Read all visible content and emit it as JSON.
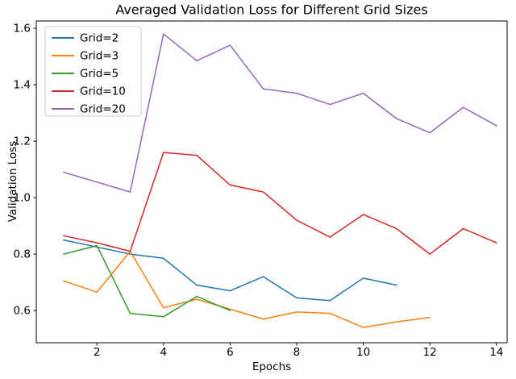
{
  "chart_data": {
    "type": "line",
    "title": "Averaged Validation Loss for Different Grid Sizes",
    "xlabel": "Epochs",
    "ylabel": "Validation Loss",
    "xlim": [
      0.18,
      14.32
    ],
    "ylim": [
      0.486,
      1.626
    ],
    "grid": false,
    "legend_position": "upper left",
    "x_ticks": [
      2,
      4,
      6,
      8,
      10,
      12,
      14
    ],
    "x_tick_labels": [
      "2",
      "4",
      "6",
      "8",
      "10",
      "12",
      "14"
    ],
    "y_ticks": [
      0.6,
      0.8,
      1.0,
      1.2,
      1.4,
      1.6
    ],
    "y_tick_labels": [
      "0.6",
      "0.8",
      "1.0",
      "1.2",
      "1.4",
      "1.6"
    ],
    "series": [
      {
        "name": "Grid=2",
        "color": "#1f77b4",
        "x": [
          1,
          2,
          3,
          4,
          5,
          6,
          7,
          8,
          9,
          10,
          11
        ],
        "values": [
          0.85,
          0.825,
          0.8,
          0.785,
          0.69,
          0.67,
          0.72,
          0.645,
          0.635,
          0.715,
          0.69
        ]
      },
      {
        "name": "Grid=3",
        "color": "#ff7f0e",
        "x": [
          1,
          2,
          3,
          4,
          5,
          6,
          7,
          8,
          9,
          10,
          11,
          12
        ],
        "values": [
          0.705,
          0.665,
          0.81,
          0.61,
          0.64,
          0.605,
          0.57,
          0.595,
          0.59,
          0.54,
          0.56,
          0.575
        ]
      },
      {
        "name": "Grid=5",
        "color": "#2ca02c",
        "x": [
          1,
          2,
          3,
          4,
          5,
          6
        ],
        "values": [
          0.8,
          0.83,
          0.59,
          0.578,
          0.65,
          0.6
        ]
      },
      {
        "name": "Grid=10",
        "color": "#d62728",
        "x": [
          1,
          2,
          3,
          4,
          5,
          6,
          7,
          8,
          9,
          10,
          11,
          12,
          13,
          14
        ],
        "values": [
          0.865,
          0.84,
          0.81,
          1.16,
          1.15,
          1.045,
          1.02,
          0.92,
          0.86,
          0.94,
          0.89,
          0.8,
          0.89,
          0.84
        ]
      },
      {
        "name": "Grid=20",
        "color": "#9467bd",
        "x": [
          1,
          2,
          3,
          4,
          5,
          6,
          7,
          8,
          9,
          10,
          11,
          12,
          13,
          14
        ],
        "values": [
          1.09,
          1.055,
          1.02,
          1.58,
          1.485,
          1.54,
          1.385,
          1.37,
          1.33,
          1.37,
          1.28,
          1.23,
          1.32,
          1.255
        ]
      }
    ],
    "line_width": 1.5,
    "spine_color": "#000000",
    "legend_border_color": "#cccccc",
    "background_color": "#ffffff"
  }
}
